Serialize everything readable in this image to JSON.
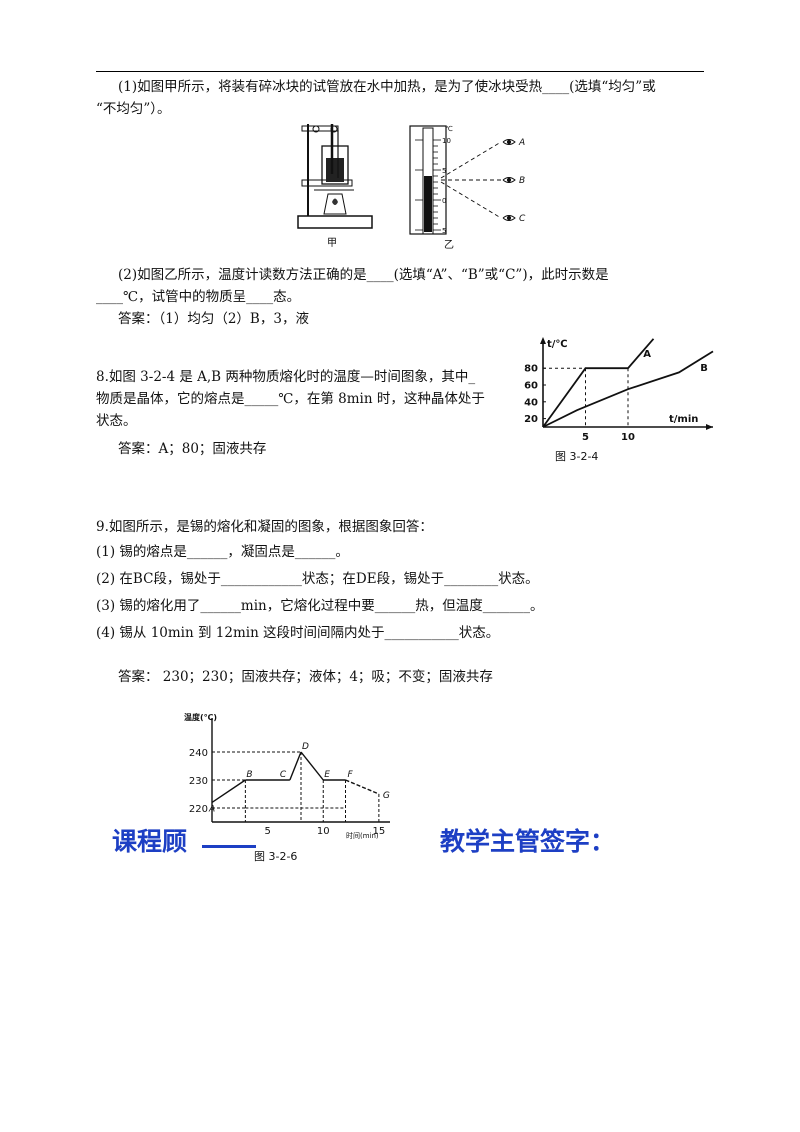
{
  "q7": {
    "part1_line1": "(1)如图甲所示，将装有碎冰块的试管放在水中加热，是为了使冰块受热____(选填“均匀”或",
    "part1_line2": "“不均匀”）。",
    "fig_jia_label": "甲",
    "fig_yi_label": "乙",
    "therm_unit": "℃",
    "therm_ticks": [
      "10",
      "5",
      "0",
      "5"
    ],
    "eye_labels": [
      "A",
      "B",
      "C"
    ],
    "part2_line1": "(2)如图乙所示，温度计读数方法正确的是____(选填“A”、“B”或“C”)，此时示数是",
    "part2_line2": "____℃，试管中的物质呈____态。",
    "answer": "答案：（1）均匀（2）B，3，液"
  },
  "q8": {
    "line1": "8.如图 3-2-4 是 A,B 两种物质熔化时的温度—时间图象，其中_",
    "line2": "物质是晶体，它的熔点是_____℃，在第 8min 时，这种晶体处于",
    "line3": "状态。",
    "answer": "答案：A；80；固液共存"
  },
  "q9": {
    "stem": "9.如图所示，是锡的熔化和凝固的图象，根据图象回答：",
    "items": [
      "(1) 锡的熔点是______，凝固点是______。",
      "(2) 在BC段，锡处于____________状态；在DE段，锡处于________状态。",
      "(3) 锡的熔化用了______min，它熔化过程中要______热，但温度_______。",
      "(4) 锡从 10min 到 12min 这段时间间隔内处于___________状态。"
    ],
    "answer": "答案： 230；230；固液共存；液体；4；吸；不变；固液共存"
  },
  "signatures": {
    "left": "课程顾",
    "right": "教学主管签字："
  },
  "chart_data": [
    {
      "type": "line",
      "caption": "图 3-2-4",
      "ylabel": "t/℃",
      "xlabel": "t/min",
      "x_ticks": [
        "5",
        "10"
      ],
      "y_ticks": [
        "20",
        "40",
        "60",
        "80"
      ],
      "ylim": [
        10,
        110
      ],
      "xlim": [
        0,
        20
      ],
      "series": [
        {
          "name": "A",
          "x": [
            0,
            5,
            10,
            13
          ],
          "y": [
            10,
            80,
            80,
            115
          ]
        },
        {
          "name": "B",
          "x": [
            0,
            4,
            10,
            16,
            20
          ],
          "y": [
            10,
            30,
            55,
            75,
            100
          ]
        }
      ]
    },
    {
      "type": "line",
      "caption": "图 3-2-6",
      "ylabel": "温度(℃)",
      "xlabel": "时间(min)",
      "x_ticks": [
        "5",
        "10",
        "15"
      ],
      "y_ticks": [
        "220",
        "230",
        "240"
      ],
      "ylim": [
        215,
        250
      ],
      "xlim": [
        0,
        16
      ],
      "series": [
        {
          "name": "",
          "x": [
            0,
            3,
            7,
            8,
            10,
            12,
            15
          ],
          "y": [
            222,
            230,
            230,
            240,
            230,
            230,
            225
          ]
        }
      ],
      "point_labels": [
        "A",
        "B",
        "C",
        "D",
        "E",
        "F",
        "G"
      ]
    }
  ]
}
